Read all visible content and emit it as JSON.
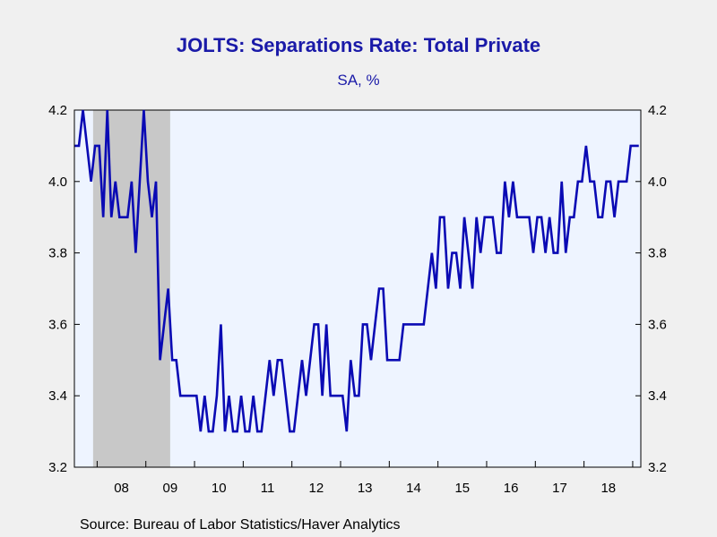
{
  "chart_data": {
    "type": "line",
    "title": "JOLTS: Separations Rate: Total Private",
    "subtitle": "SA, %",
    "source": "Source:  Bureau of Labor Statistics/Haver Analytics",
    "ylim": [
      3.2,
      4.2
    ],
    "y_ticks": [
      "3.2",
      "3.4",
      "3.6",
      "3.8",
      "4.0",
      "4.2"
    ],
    "y_tick_values": [
      3.2,
      3.4,
      3.6,
      3.8,
      4.0,
      4.2
    ],
    "x_tick_labels": [
      "08",
      "09",
      "10",
      "11",
      "12",
      "13",
      "14",
      "15",
      "16",
      "17",
      "18"
    ],
    "x_start": "2007-07",
    "recession": {
      "start": "2007-12",
      "end": "2009-06"
    },
    "colors": {
      "line": "#0a0ab4",
      "plot_bg": "#eef4ff",
      "recession": "#c8c8c8",
      "title": "#1a1aa8"
    },
    "series": [
      {
        "values": [
          4.1,
          4.1,
          4.2,
          4.1,
          4.0,
          4.1,
          4.1,
          3.9,
          4.2,
          3.9,
          4.0,
          3.9,
          3.9,
          3.9,
          4.0,
          3.8,
          4.0,
          4.2,
          4.0,
          3.9,
          4.0,
          3.5,
          3.6,
          3.7,
          3.5,
          3.5,
          3.4,
          3.4,
          3.4,
          3.4,
          3.4,
          3.3,
          3.4,
          3.3,
          3.3,
          3.4,
          3.6,
          3.3,
          3.4,
          3.3,
          3.3,
          3.4,
          3.3,
          3.3,
          3.4,
          3.3,
          3.3,
          3.4,
          3.5,
          3.4,
          3.5,
          3.5,
          3.4,
          3.3,
          3.3,
          3.4,
          3.5,
          3.4,
          3.5,
          3.6,
          3.6,
          3.4,
          3.6,
          3.4,
          3.4,
          3.4,
          3.4,
          3.3,
          3.5,
          3.4,
          3.4,
          3.6,
          3.6,
          3.5,
          3.6,
          3.7,
          3.7,
          3.5,
          3.5,
          3.5,
          3.5,
          3.6,
          3.6,
          3.6,
          3.6,
          3.6,
          3.6,
          3.7,
          3.8,
          3.7,
          3.9,
          3.9,
          3.7,
          3.8,
          3.8,
          3.7,
          3.9,
          3.8,
          3.7,
          3.9,
          3.8,
          3.9,
          3.9,
          3.9,
          3.8,
          3.8,
          4.0,
          3.9,
          4.0,
          3.9,
          3.9,
          3.9,
          3.9,
          3.8,
          3.9,
          3.9,
          3.8,
          3.9,
          3.8,
          3.8,
          4.0,
          3.8,
          3.9,
          3.9,
          4.0,
          4.0,
          4.1,
          4.0,
          4.0,
          3.9,
          3.9,
          4.0,
          4.0,
          3.9,
          4.0,
          4.0,
          4.0,
          4.1,
          4.1,
          4.1
        ]
      }
    ]
  }
}
